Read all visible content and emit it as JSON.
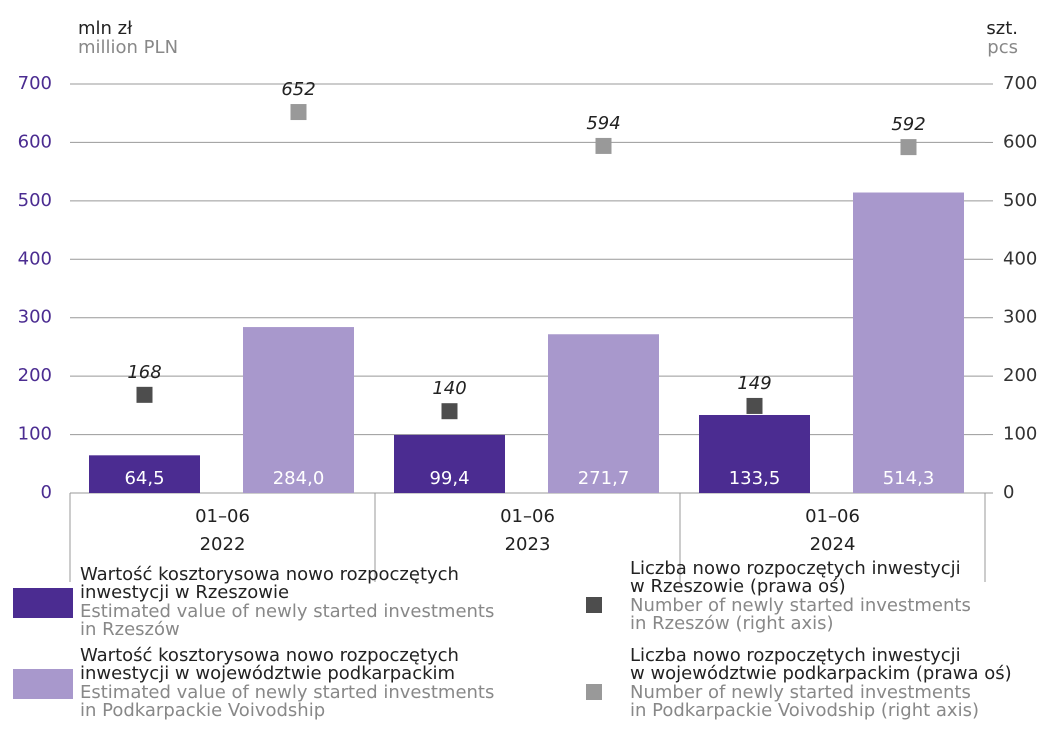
{
  "chart_data": {
    "type": "bar",
    "y_label": [
      "mln zł",
      "million PLN"
    ],
    "y2_label": [
      "szt.",
      "pcs"
    ],
    "categories": [
      [
        "01–06",
        "2022"
      ],
      [
        "01–06",
        "2023"
      ],
      [
        "01–06",
        "2024"
      ]
    ],
    "ylim": [
      0,
      700
    ],
    "yticks": [
      0,
      100,
      200,
      300,
      400,
      500,
      600,
      700
    ],
    "y2lim": [
      0,
      700
    ],
    "y2ticks": [
      0,
      100,
      200,
      300,
      400,
      500,
      600,
      700
    ],
    "grid": true,
    "series": [
      {
        "type": "bar",
        "name": [
          "Wartość kosztorysowa nowo rozpoczętych",
          "inwestycji w Rzeszowie"
        ],
        "name_en": [
          "Estimated value of newly started investments",
          "in Rzeszów"
        ],
        "color": "#4b2c91",
        "values": [
          64.5,
          99.4,
          133.5
        ],
        "value_labels": [
          "64,5",
          "99,4",
          "133,5"
        ]
      },
      {
        "type": "bar",
        "name": [
          "Wartość kosztorysowa nowo rozpoczętych",
          "inwestycji w województwie podkarpackim"
        ],
        "name_en": [
          "Estimated value of newly started investments",
          "in Podkarpackie Voivodship"
        ],
        "color": "#a898cc",
        "values": [
          284.0,
          271.7,
          514.3
        ],
        "value_labels": [
          "284,0",
          "271,7",
          "514,3"
        ]
      },
      {
        "type": "scatter",
        "axis": "y2",
        "name": [
          "Liczba nowo rozpoczętych inwestycji",
          "w Rzeszowie (prawa oś)"
        ],
        "name_en": [
          "Number of newly started investments",
          "in Rzeszów (right axis)"
        ],
        "color": "#4d4d4d",
        "values": [
          168,
          140,
          149
        ]
      },
      {
        "type": "scatter",
        "axis": "y2",
        "name": [
          "Liczba nowo rozpoczętych inwestycji",
          "w województwie podkarpackim (prawa oś)"
        ],
        "name_en": [
          "Number of newly started investments",
          "in Podkarpackie Voivodship (right axis)"
        ],
        "color": "#999999",
        "values": [
          652,
          594,
          592
        ]
      }
    ]
  }
}
